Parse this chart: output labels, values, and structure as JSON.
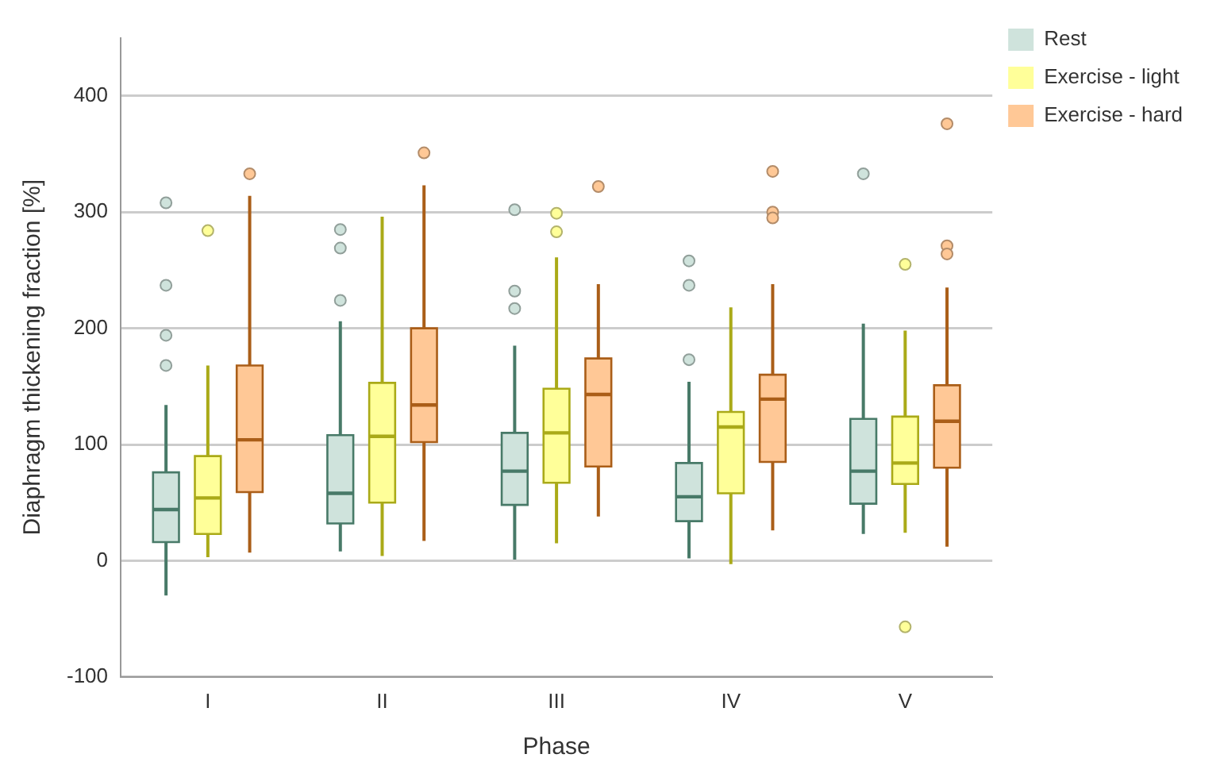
{
  "chart_data": {
    "type": "box",
    "xlabel": "Phase",
    "ylabel": "Diaphragm thickening fraction [%]",
    "categories": [
      "I",
      "II",
      "III",
      "IV",
      "V"
    ],
    "ylim": [
      -100,
      450
    ],
    "yticks": [
      -100,
      0,
      100,
      200,
      300,
      400
    ],
    "grid": "y",
    "legend": "top right",
    "series": [
      {
        "name": "Rest",
        "color": "#cfe3dc",
        "boxes": [
          {
            "low": -30,
            "q1": 16,
            "median": 44,
            "q3": 76,
            "high": 134,
            "outliers": [
              308,
              237,
              194,
              168
            ]
          },
          {
            "low": 8,
            "q1": 32,
            "median": 58,
            "q3": 108,
            "high": 206,
            "outliers": [
              285,
              269,
              224
            ]
          },
          {
            "low": 1,
            "q1": 48,
            "median": 77,
            "q3": 110,
            "high": 185,
            "outliers": [
              302,
              232,
              217
            ]
          },
          {
            "low": 2,
            "q1": 34,
            "median": 55,
            "q3": 84,
            "high": 154,
            "outliers": [
              258,
              237,
              173
            ]
          },
          {
            "low": 23,
            "q1": 49,
            "median": 77,
            "q3": 122,
            "high": 204,
            "outliers": [
              333
            ]
          }
        ]
      },
      {
        "name": "Exercise - light",
        "color": "#ffff99",
        "boxes": [
          {
            "low": 3,
            "q1": 23,
            "median": 54,
            "q3": 90,
            "high": 168,
            "outliers": [
              284
            ]
          },
          {
            "low": 4,
            "q1": 50,
            "median": 107,
            "q3": 153,
            "high": 296
          },
          {
            "low": 15,
            "q1": 67,
            "median": 110,
            "q3": 148,
            "high": 261,
            "outliers": [
              299,
              283
            ]
          },
          {
            "low": -3,
            "q1": 58,
            "median": 115,
            "q3": 128,
            "high": 218
          },
          {
            "low": 24,
            "q1": 66,
            "median": 84,
            "q3": 124,
            "high": 198,
            "outliers": [
              255,
              -57
            ]
          }
        ]
      },
      {
        "name": "Exercise - hard",
        "color": "#ffc896",
        "boxes": [
          {
            "low": 7,
            "q1": 59,
            "median": 104,
            "q3": 168,
            "high": 314,
            "outliers": [
              333
            ]
          },
          {
            "low": 17,
            "q1": 102,
            "median": 134,
            "q3": 200,
            "high": 323,
            "outliers": [
              351
            ]
          },
          {
            "low": 38,
            "q1": 81,
            "median": 143,
            "q3": 174,
            "high": 238,
            "outliers": [
              322
            ]
          },
          {
            "low": 26,
            "q1": 85,
            "median": 139,
            "q3": 160,
            "high": 238,
            "outliers": [
              335,
              300,
              295
            ]
          },
          {
            "low": 12,
            "q1": 80,
            "median": 120,
            "q3": 151,
            "high": 235,
            "outliers": [
              376,
              271,
              264
            ]
          }
        ]
      }
    ]
  }
}
